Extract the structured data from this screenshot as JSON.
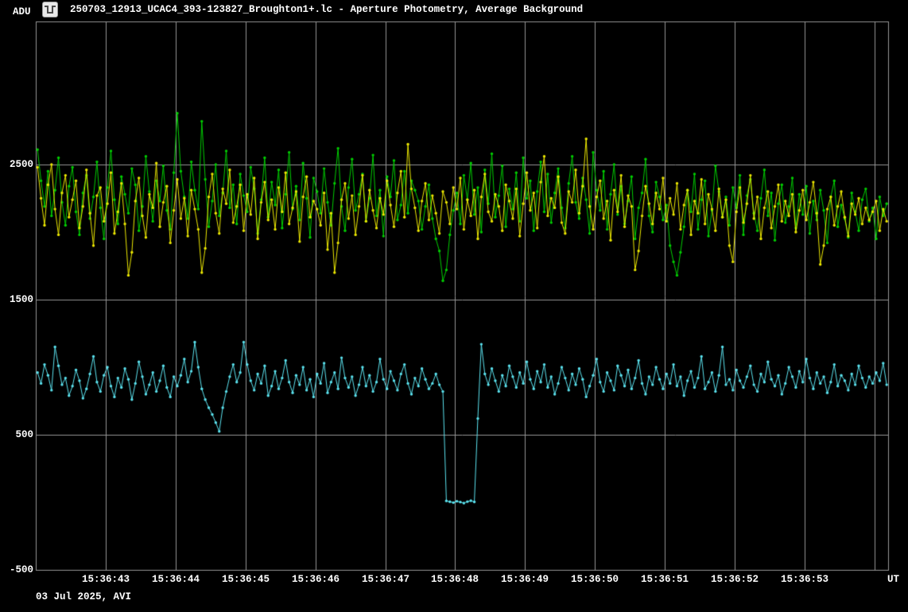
{
  "window": {
    "icon": "occultation-lightcurve-icon",
    "title": "250703_12913_UCAC4_393-123827_Broughton1+.lc - Aperture Photometry, Average Background"
  },
  "axes": {
    "y_unit": "ADU",
    "x_unit": "UT"
  },
  "footer": {
    "date_info": "03 Jul 2025, AVI"
  },
  "colors": {
    "background": "#000000",
    "grid": "#969696",
    "text": "#ffffff",
    "series_green": "#00ce00",
    "series_yellow": "#ede900",
    "series_cyan": "#5be3ef",
    "icon_bg": "#e9e9e9",
    "icon_glyph": "#4a4a4a"
  },
  "chart_data": {
    "type": "line",
    "title": "250703_12913_UCAC4_393-123827_Broughton1+.lc - Aperture Photometry, Average Background",
    "xlabel": "UT",
    "ylabel": "ADU",
    "grid": true,
    "x_start_time": "15:36:42",
    "x_span_seconds": 12.2,
    "sample_interval_s": 0.05,
    "first_sample_offset_s": 0.025,
    "ylim": [
      -500,
      3560
    ],
    "y_ticks": [
      {
        "value": 2500,
        "label": "2500"
      },
      {
        "value": 1500,
        "label": "1500"
      },
      {
        "value": 500,
        "label": "500"
      },
      {
        "value": -500,
        "label": "-500"
      }
    ],
    "y_gridlines": [
      2500,
      1500,
      500
    ],
    "x_ticks": [
      {
        "t": 1,
        "label": "15:36:43"
      },
      {
        "t": 2,
        "label": "15:36:44"
      },
      {
        "t": 3,
        "label": "15:36:45"
      },
      {
        "t": 4,
        "label": "15:36:46"
      },
      {
        "t": 5,
        "label": "15:36:47"
      },
      {
        "t": 6,
        "label": "15:36:48"
      },
      {
        "t": 7,
        "label": "15:36:49"
      },
      {
        "t": 8,
        "label": "15:36:50"
      },
      {
        "t": 9,
        "label": "15:36:51"
      },
      {
        "t": 10,
        "label": "15:36:52"
      },
      {
        "t": 11,
        "label": "15:36:53"
      },
      {
        "t": 12,
        "label": ""
      }
    ],
    "series": [
      {
        "name": "aperture-green",
        "color_key": "series_green",
        "values": [
          2610,
          2380,
          2190,
          2450,
          2120,
          2310,
          2550,
          2220,
          2050,
          2340,
          2480,
          2150,
          1980,
          2290,
          2420,
          2100,
          2260,
          2520,
          2180,
          1950,
          2330,
          2600,
          2240,
          2060,
          2410,
          2280,
          2140,
          2470,
          2350,
          2010,
          2190,
          2560,
          2300,
          2080,
          2380,
          2230,
          2490,
          2160,
          2020,
          2440,
          2880,
          2450,
          2260,
          2100,
          2520,
          2310,
          2170,
          2820,
          2390,
          2040,
          2230,
          2500,
          2120,
          2290,
          2600,
          2180,
          2350,
          2060,
          2430,
          2270,
          2150,
          2480,
          2320,
          1990,
          2240,
          2550,
          2110,
          2370,
          2200,
          2460,
          2030,
          2280,
          2590,
          2170,
          2340,
          2090,
          2510,
          2250,
          1960,
          2400,
          2300,
          2140,
          2470,
          2220,
          2050,
          2360,
          2620,
          2190,
          2010,
          2330,
          2540,
          2160,
          2280,
          2430,
          2080,
          2250,
          2570,
          2120,
          2310,
          1970,
          2410,
          2260,
          2530,
          2090,
          2200,
          2450,
          2140,
          2380,
          2310,
          2230,
          2020,
          2190,
          2350,
          2100,
          1950,
          1860,
          1640,
          1720,
          1980,
          2160,
          2290,
          2060,
          2420,
          2240,
          2510,
          2130,
          2330,
          2000,
          2460,
          2210,
          2580,
          2110,
          2270,
          2490,
          2040,
          2320,
          2170,
          2440,
          2080,
          2550,
          2250,
          2380,
          2010,
          2300,
          2520,
          2150,
          2430,
          2070,
          2290,
          2470,
          2180,
          2030,
          2360,
          2560,
          2220,
          2100,
          2400,
          2240,
          1990,
          2590,
          2310,
          2160,
          2450,
          2020,
          2280,
          2500,
          2130,
          2340,
          2060,
          2230,
          2410,
          1950,
          2180,
          2290,
          2540,
          2120,
          2000,
          2370,
          2260,
          2090,
          2200,
          1900,
          1780,
          1680,
          1850,
          2040,
          2310,
          2150,
          2430,
          2020,
          2240,
          2380,
          1970,
          2160,
          2490,
          2300,
          2110,
          2260,
          2050,
          2330,
          2180,
          2420,
          1980,
          2270,
          2390,
          2140,
          2010,
          2250,
          2460,
          2120,
          2290,
          1940,
          2210,
          2350,
          2070,
          2190,
          2400,
          2030,
          2280,
          2130,
          2340,
          1990,
          2230,
          2090,
          2310,
          2160,
          1920,
          2260,
          2380,
          2040,
          2200,
          2100,
          1960,
          2290,
          2150,
          2010,
          2240,
          2320,
          2080,
          2180,
          1950,
          2260,
          2120,
          2210
        ]
      },
      {
        "name": "aperture-yellow",
        "color_key": "series_yellow",
        "values": [
          2480,
          2250,
          2050,
          2350,
          2500,
          2170,
          1980,
          2290,
          2420,
          2110,
          2240,
          2380,
          2030,
          2190,
          2460,
          2140,
          1900,
          2270,
          2330,
          2080,
          2210,
          2440,
          1990,
          2150,
          2360,
          2060,
          1680,
          1850,
          2230,
          2400,
          2120,
          1960,
          2280,
          2180,
          2510,
          2040,
          2220,
          2340,
          1920,
          2160,
          2390,
          2100,
          2250,
          1970,
          2310,
          2170,
          2020,
          1700,
          1880,
          2260,
          2430,
          2140,
          1990,
          2320,
          2210,
          2460,
          2070,
          2190,
          2350,
          2010,
          2280,
          2130,
          2400,
          1950,
          2220,
          2370,
          2090,
          2240,
          2020,
          2330,
          2150,
          2440,
          2060,
          2180,
          2300,
          1930,
          2260,
          2410,
          2110,
          2230,
          2170,
          2050,
          2290,
          1870,
          2140,
          1700,
          1920,
          2240,
          2360,
          2100,
          2270,
          1980,
          2190,
          2420,
          2080,
          2310,
          2160,
          2030,
          2250,
          2130,
          2380,
          2200,
          2040,
          2290,
          2450,
          2110,
          2650,
          2320,
          2180,
          2010,
          2230,
          2360,
          2090,
          2270,
          2140,
          1990,
          2300,
          2220,
          2060,
          2330,
          2170,
          2400,
          2020,
          2240,
          2120,
          2310,
          1950,
          2260,
          2430,
          2150,
          2080,
          2280,
          2190,
          2010,
          2350,
          2230,
          2100,
          2320,
          1970,
          2210,
          2440,
          2160,
          2290,
          2030,
          2370,
          2560,
          2120,
          2250,
          2180,
          2410,
          2070,
          1990,
          2300,
          2220,
          2460,
          2140,
          2340,
          2690,
          2190,
          2020,
          2260,
          2380,
          2100,
          2230,
          1940,
          2310,
          2150,
          2420,
          2040,
          2270,
          2190,
          1720,
          1860,
          2120,
          2340,
          2210,
          2060,
          2290,
          2170,
          2400,
          2080,
          2250,
          2130,
          2360,
          2020,
          2200,
          2310,
          1980,
          2230,
          2140,
          2390,
          2060,
          2280,
          2170,
          2010,
          2320,
          2110,
          2240,
          1900,
          1780,
          2150,
          2330,
          2070,
          2210,
          2420,
          2100,
          2260,
          1950,
          2180,
          2300,
          2030,
          2190,
          2350,
          2080,
          2230,
          2120,
          2280,
          2000,
          2160,
          2310,
          2090,
          2220,
          2370,
          2140,
          1760,
          1900,
          2170,
          2260,
          2050,
          2190,
          2300,
          2110,
          1970,
          2210,
          2130,
          2250,
          2060,
          2180,
          2090,
          2150,
          2230,
          2010,
          2170,
          2080
        ]
      },
      {
        "name": "aperture-cyan-target",
        "color_key": "series_cyan",
        "values": [
          960,
          880,
          1020,
          940,
          830,
          1150,
          1010,
          870,
          920,
          790,
          860,
          980,
          900,
          770,
          840,
          950,
          1080,
          890,
          820,
          940,
          1000,
          860,
          780,
          920,
          850,
          990,
          910,
          760,
          880,
          1040,
          930,
          800,
          870,
          960,
          820,
          900,
          1010,
          850,
          780,
          930,
          860,
          940,
          1060,
          890,
          970,
          1185,
          1000,
          840,
          760,
          700,
          650,
          590,
          525,
          700,
          820,
          930,
          1020,
          890,
          960,
          1185,
          1020,
          900,
          830,
          950,
          880,
          1010,
          790,
          860,
          970,
          840,
          920,
          1050,
          890,
          810,
          940,
          870,
          1000,
          830,
          910,
          780,
          950,
          880,
          1030,
          810,
          890,
          960,
          840,
          1070,
          920,
          850,
          930,
          790,
          870,
          1000,
          860,
          940,
          820,
          890,
          1060,
          910,
          840,
          970,
          900,
          830,
          950,
          1020,
          880,
          800,
          920,
          860,
          990,
          910,
          840,
          880,
          950,
          870,
          820,
          10,
          4,
          -2,
          8,
          2,
          -6,
          5,
          12,
          3,
          620,
          1170,
          950,
          870,
          990,
          900,
          820,
          940,
          860,
          1010,
          930,
          850,
          960,
          880,
          1040,
          910,
          840,
          970,
          890,
          1020,
          850,
          930,
          800,
          880,
          1000,
          920,
          830,
          950,
          870,
          990,
          910,
          780,
          860,
          940,
          1060,
          890,
          820,
          960,
          900,
          830,
          1010,
          940,
          860,
          980,
          840,
          920,
          1050,
          880,
          800,
          930,
          870,
          1000,
          910,
          840,
          950,
          880,
          1020,
          860,
          930,
          790,
          900,
          970,
          850,
          920,
          1080,
          840,
          890,
          960,
          820,
          940,
          1150,
          870,
          910,
          830,
          980,
          900,
          850,
          930,
          1010,
          870,
          820,
          950,
          890,
          1040,
          910,
          860,
          940,
          800,
          880,
          1000,
          930,
          850,
          970,
          890,
          1060,
          920,
          840,
          960,
          880,
          930,
          810,
          890,
          1020,
          860,
          940,
          900,
          830,
          950,
          870,
          1010,
          920,
          850,
          930,
          880,
          960,
          900,
          1030,
          870
        ]
      }
    ]
  }
}
